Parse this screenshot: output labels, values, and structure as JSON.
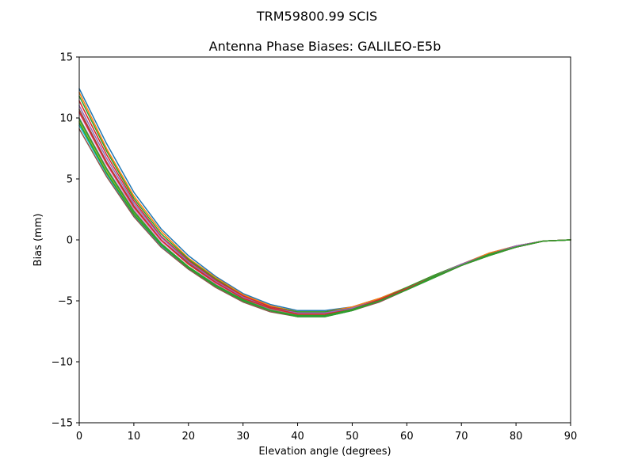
{
  "figure": {
    "suptitle": "TRM59800.99      SCIS"
  },
  "chart_data": {
    "type": "line",
    "title": "Antenna Phase Biases: GALILEO-E5b",
    "xlabel": "Elevation angle (degrees)",
    "ylabel": "Bias (mm)",
    "xlim": [
      0,
      90
    ],
    "ylim": [
      -15,
      15
    ],
    "xticks": [
      0,
      10,
      20,
      30,
      40,
      50,
      60,
      70,
      80,
      90
    ],
    "yticks": [
      -15,
      -10,
      -5,
      0,
      5,
      10,
      15
    ],
    "xtick_labels": [
      "0",
      "10",
      "20",
      "30",
      "40",
      "50",
      "60",
      "70",
      "80",
      "90"
    ],
    "ytick_labels": [
      "−15",
      "−10",
      "−5",
      "0",
      "5",
      "10",
      "15"
    ],
    "grid": false,
    "legend": "none",
    "x": [
      0,
      5,
      10,
      15,
      20,
      25,
      30,
      35,
      40,
      45,
      50,
      55,
      60,
      65,
      70,
      75,
      80,
      85,
      90
    ],
    "series": [
      {
        "color": "#1f77b4",
        "values": [
          12.4,
          7.9,
          3.9,
          0.9,
          -1.3,
          -3.0,
          -4.4,
          -5.3,
          -5.8,
          -5.8,
          -5.5,
          -4.8,
          -3.9,
          -2.9,
          -2.0,
          -1.1,
          -0.5,
          -0.1,
          0.0
        ]
      },
      {
        "color": "#ff7f0e",
        "values": [
          12.1,
          7.5,
          3.6,
          0.7,
          -1.5,
          -3.1,
          -4.5,
          -5.4,
          -5.9,
          -5.9,
          -5.5,
          -4.8,
          -3.9,
          -2.9,
          -2.0,
          -1.1,
          -0.5,
          -0.1,
          0.0
        ]
      },
      {
        "color": "#2ca02c",
        "values": [
          11.8,
          7.3,
          3.4,
          0.5,
          -1.6,
          -3.2,
          -4.6,
          -5.5,
          -5.9,
          -5.9,
          -5.6,
          -4.9,
          -3.9,
          -2.9,
          -2.0,
          -1.2,
          -0.5,
          -0.1,
          0.0
        ]
      },
      {
        "color": "#d62728",
        "values": [
          11.4,
          7.0,
          3.2,
          0.3,
          -1.7,
          -3.3,
          -4.6,
          -5.5,
          -6.0,
          -6.0,
          -5.6,
          -4.9,
          -4.0,
          -3.0,
          -2.0,
          -1.2,
          -0.5,
          -0.1,
          0.0
        ]
      },
      {
        "color": "#9467bd",
        "values": [
          11.0,
          6.7,
          3.0,
          0.2,
          -1.8,
          -3.4,
          -4.7,
          -5.6,
          -6.0,
          -6.0,
          -5.6,
          -4.9,
          -4.0,
          -3.0,
          -2.0,
          -1.2,
          -0.5,
          -0.1,
          0.0
        ]
      },
      {
        "color": "#8c564b",
        "values": [
          10.7,
          6.4,
          2.8,
          0.0,
          -1.9,
          -3.5,
          -4.8,
          -5.6,
          -6.1,
          -6.1,
          -5.7,
          -4.9,
          -4.0,
          -3.0,
          -2.1,
          -1.2,
          -0.6,
          -0.1,
          0.0
        ]
      },
      {
        "color": "#e377c2",
        "values": [
          10.4,
          6.2,
          2.6,
          -0.1,
          -2.0,
          -3.6,
          -4.8,
          -5.7,
          -6.1,
          -6.1,
          -5.7,
          -5.0,
          -4.0,
          -3.0,
          -2.1,
          -1.2,
          -0.6,
          -0.1,
          0.0
        ]
      },
      {
        "color": "#7f7f7f",
        "values": [
          10.0,
          5.9,
          2.4,
          -0.3,
          -2.2,
          -3.7,
          -4.9,
          -5.7,
          -6.2,
          -6.2,
          -5.7,
          -5.0,
          -4.1,
          -3.0,
          -2.1,
          -1.2,
          -0.6,
          -0.1,
          0.0
        ]
      },
      {
        "color": "#bcbd22",
        "values": [
          9.7,
          5.6,
          2.2,
          -0.4,
          -2.3,
          -3.8,
          -5.0,
          -5.8,
          -6.2,
          -6.2,
          -5.8,
          -5.0,
          -4.1,
          -3.1,
          -2.1,
          -1.3,
          -0.6,
          -0.1,
          0.0
        ]
      },
      {
        "color": "#17becf",
        "values": [
          9.4,
          5.4,
          2.0,
          -0.5,
          -2.4,
          -3.8,
          -5.0,
          -5.8,
          -6.3,
          -6.3,
          -5.8,
          -5.0,
          -4.1,
          -3.1,
          -2.1,
          -1.3,
          -0.6,
          -0.1,
          0.0
        ]
      },
      {
        "color": "#8c564b",
        "values": [
          9.1,
          5.2,
          1.9,
          -0.6,
          -2.4,
          -3.9,
          -5.1,
          -5.9,
          -6.3,
          -6.3,
          -5.8,
          -5.1,
          -4.1,
          -3.1,
          -2.1,
          -1.3,
          -0.6,
          -0.1,
          0.0
        ]
      },
      {
        "color": "#2ca02c",
        "values": [
          9.6,
          5.5,
          2.1,
          -0.4,
          -2.3,
          -3.8,
          -5.0,
          -5.8,
          -6.3,
          -6.3,
          -5.8,
          -5.0,
          -4.1,
          -3.1,
          -2.1,
          -1.3,
          -0.6,
          -0.1,
          0.0
        ]
      },
      {
        "color": "#d62728",
        "values": [
          10.5,
          6.3,
          2.7,
          0.0,
          -2.0,
          -3.5,
          -4.8,
          -5.6,
          -6.1,
          -6.1,
          -5.7,
          -4.9,
          -4.0,
          -3.0,
          -2.1,
          -1.2,
          -0.6,
          -0.1,
          0.0
        ]
      },
      {
        "color": "#2ca02c",
        "values": [
          9.9,
          5.8,
          2.3,
          -0.3,
          -2.2,
          -3.7,
          -4.9,
          -5.8,
          -6.2,
          -6.2,
          -5.7,
          -5.0,
          -4.1,
          -3.0,
          -2.1,
          -1.2,
          -0.6,
          -0.1,
          0.0
        ]
      }
    ]
  }
}
